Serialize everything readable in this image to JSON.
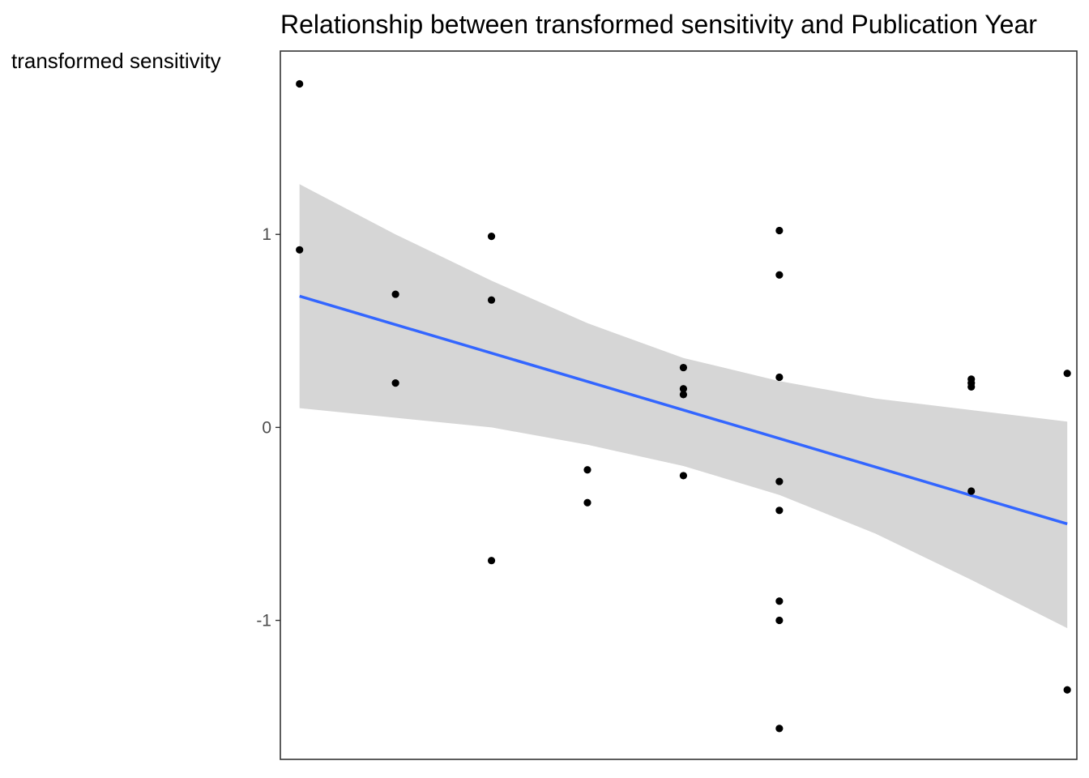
{
  "chart_data": {
    "type": "scatter",
    "title": "Relationship between transformed sensitivity and Publication Year",
    "xlabel": "",
    "ylabel": "transformed sensitivity",
    "x_categories_count": 9,
    "xlim": [
      0.8,
      9.1
    ],
    "ylim": [
      -1.72,
      1.95
    ],
    "y_ticks": [
      -1,
      0,
      1
    ],
    "y_tick_labels": [
      "-1",
      "0",
      "1"
    ],
    "grid": false,
    "points": [
      {
        "x": 1,
        "y": 1.78
      },
      {
        "x": 1,
        "y": 0.92
      },
      {
        "x": 2,
        "y": 0.69
      },
      {
        "x": 2,
        "y": 0.23
      },
      {
        "x": 3,
        "y": 0.99
      },
      {
        "x": 3,
        "y": 0.66
      },
      {
        "x": 3,
        "y": -0.69
      },
      {
        "x": 4,
        "y": -0.22
      },
      {
        "x": 4,
        "y": -0.39
      },
      {
        "x": 5,
        "y": 0.31
      },
      {
        "x": 5,
        "y": 0.2
      },
      {
        "x": 5,
        "y": 0.17
      },
      {
        "x": 5,
        "y": -0.25
      },
      {
        "x": 6,
        "y": 1.02
      },
      {
        "x": 6,
        "y": 0.79
      },
      {
        "x": 6,
        "y": 0.26
      },
      {
        "x": 6,
        "y": -0.28
      },
      {
        "x": 6,
        "y": -0.43
      },
      {
        "x": 6,
        "y": -0.9
      },
      {
        "x": 6,
        "y": -1.0
      },
      {
        "x": 6,
        "y": -1.56
      },
      {
        "x": 8,
        "y": 0.25
      },
      {
        "x": 8,
        "y": 0.23
      },
      {
        "x": 8,
        "y": 0.21
      },
      {
        "x": 8,
        "y": -0.33
      },
      {
        "x": 9,
        "y": 0.28
      },
      {
        "x": 9,
        "y": -1.36
      }
    ],
    "fit_line": {
      "x": [
        1,
        9
      ],
      "y": [
        0.68,
        -0.5
      ],
      "color": "#3366ff"
    },
    "confidence_band": {
      "x": [
        1,
        2,
        3,
        4,
        5,
        6,
        7,
        8,
        9
      ],
      "upper": [
        1.26,
        1.0,
        0.76,
        0.54,
        0.36,
        0.24,
        0.15,
        0.09,
        0.03
      ],
      "lower": [
        0.1,
        0.05,
        0.0,
        -0.09,
        -0.2,
        -0.35,
        -0.55,
        -0.79,
        -1.04
      ],
      "color": "#d6d6d6"
    },
    "point_color": "#000000",
    "panel_border_color": "#333333"
  }
}
